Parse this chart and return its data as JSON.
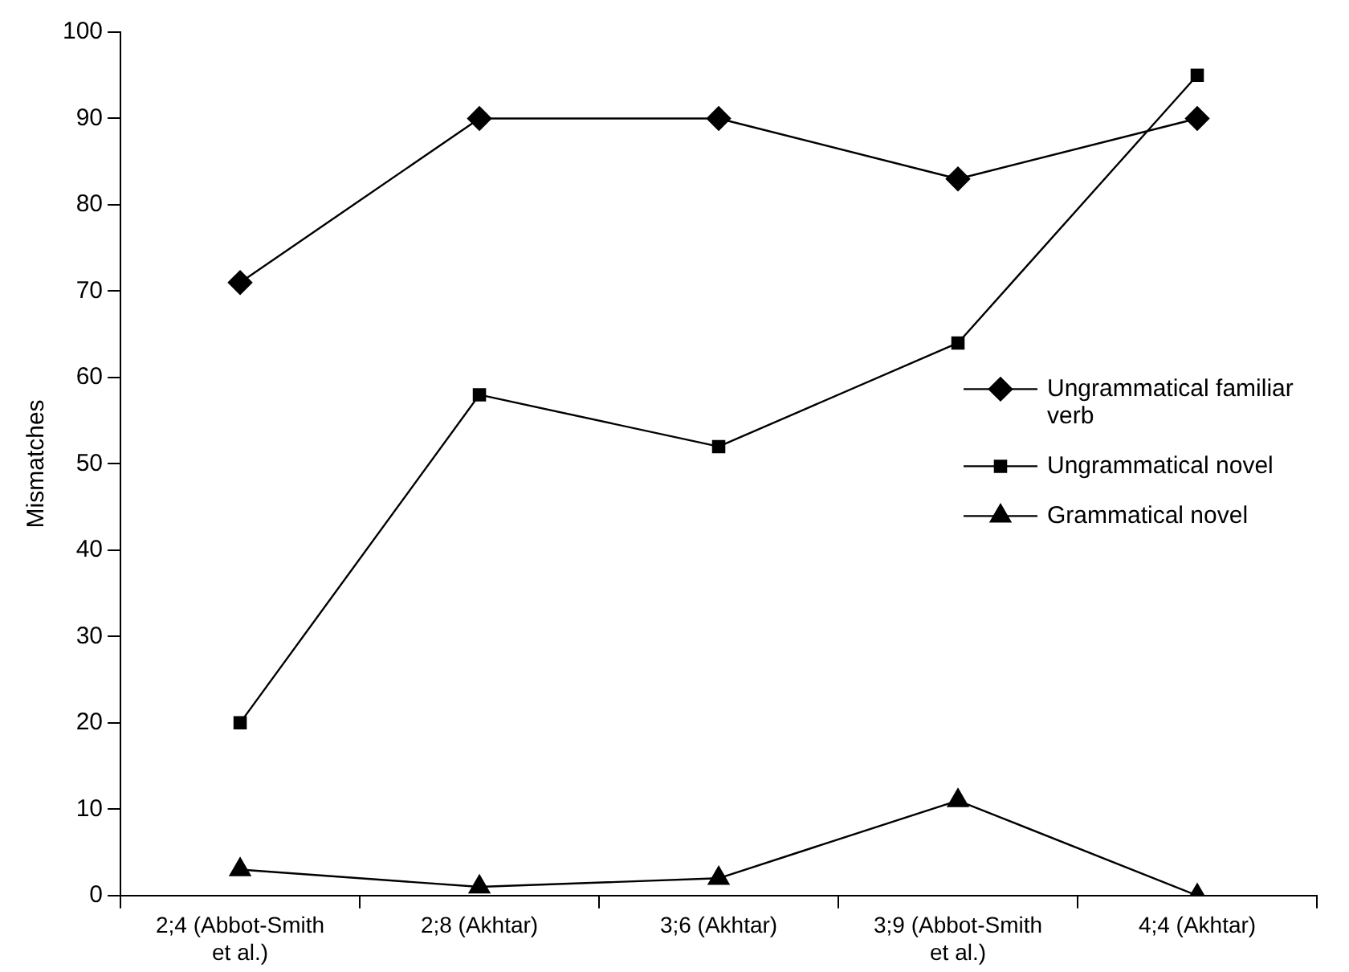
{
  "chart_data": {
    "type": "line",
    "ylabel": "Mismatches",
    "categories": [
      "2;4 (Abbot-Smith et al.)",
      "2;8 (Akhtar)",
      "3;6 (Akhtar)",
      "3;9 (Abbot-Smith et al.)",
      "4;4 (Akhtar)"
    ],
    "series": [
      {
        "name": "Ungrammatical familiar verb",
        "color": "#000000",
        "marker": "diamond",
        "values": [
          71,
          90,
          90,
          83,
          90
        ]
      },
      {
        "name": "Ungrammatical novel",
        "color": "#000000",
        "marker": "square",
        "values": [
          20,
          58,
          52,
          64,
          95
        ]
      },
      {
        "name": "Grammatical novel",
        "color": "#000000",
        "marker": "triangle",
        "values": [
          3,
          1,
          2,
          11,
          0
        ]
      }
    ],
    "ylim": [
      0,
      100
    ],
    "yticks": [
      0,
      10,
      20,
      30,
      40,
      50,
      60,
      70,
      80,
      90,
      100
    ],
    "grid": false,
    "legend": "right",
    "line_style": "solid"
  }
}
